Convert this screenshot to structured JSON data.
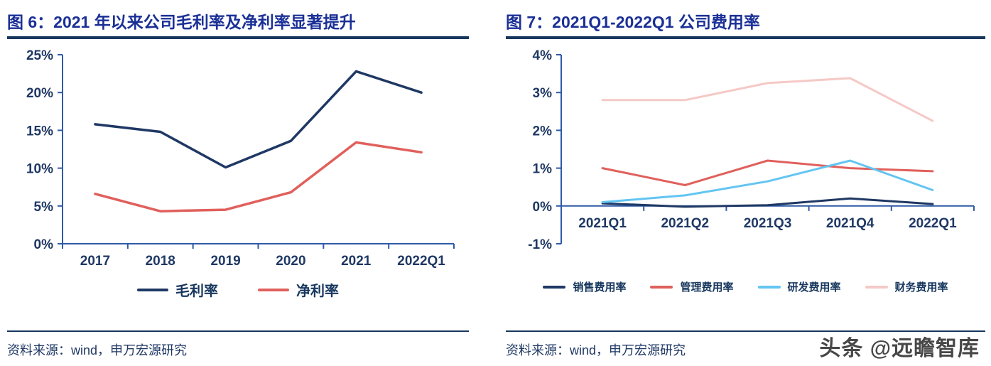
{
  "figure6": {
    "title": "图 6：2021 年以来公司毛利率及净利率显著提升",
    "source": "资料来源：wind，申万宏源研究"
  },
  "figure7": {
    "title": "图 7：2021Q1-2022Q1 公司费用率",
    "source": "资料来源：wind，申万宏源研究"
  },
  "watermark": "头条 @远瞻智库",
  "colors": {
    "title_blue": "#1b3096",
    "rule_navy": "#17375E",
    "axis_blue": "#2E5AA8",
    "label_navy": "#1F3864"
  },
  "chart_data": [
    {
      "type": "line",
      "title": "图 6：2021 年以来公司毛利率及净利率显著提升",
      "categories": [
        "2017",
        "2018",
        "2019",
        "2020",
        "2021",
        "2022Q1"
      ],
      "series": [
        {
          "name": "毛利率",
          "color": "#1F3864",
          "values": [
            15.8,
            14.8,
            10.1,
            13.6,
            22.8,
            20.0
          ]
        },
        {
          "name": "净利率",
          "color": "#E0605C",
          "values": [
            6.6,
            4.3,
            4.5,
            6.8,
            13.4,
            12.1
          ]
        }
      ],
      "ylim": [
        0,
        25
      ],
      "yticks": [
        0,
        5,
        10,
        15,
        20,
        25
      ],
      "ytick_suffix": "%",
      "axis_color": "#2E5AA8",
      "stroke_width": 3.5,
      "grid": false,
      "legend_position": "bottom"
    },
    {
      "type": "line",
      "title": "图 7：2021Q1-2022Q1 公司费用率",
      "categories": [
        "2021Q1",
        "2021Q2",
        "2021Q3",
        "2021Q4",
        "2022Q1"
      ],
      "series": [
        {
          "name": "销售费用率",
          "color": "#1F3864",
          "values": [
            0.07,
            -0.02,
            0.02,
            0.2,
            0.05
          ]
        },
        {
          "name": "管理费用率",
          "color": "#E0605C",
          "values": [
            1.0,
            0.55,
            1.2,
            1.0,
            0.92
          ]
        },
        {
          "name": "研发费用率",
          "color": "#63C5F2",
          "values": [
            0.1,
            0.28,
            0.65,
            1.2,
            0.42
          ]
        },
        {
          "name": "财务费用率",
          "color": "#F5C9C6",
          "values": [
            2.8,
            2.8,
            3.25,
            3.38,
            2.25
          ]
        }
      ],
      "ylim": [
        -1,
        4
      ],
      "yticks": [
        -1,
        0,
        1,
        2,
        3,
        4
      ],
      "ytick_suffix": "%",
      "axis_color": "#2E5AA8",
      "stroke_width": 3,
      "grid": false,
      "legend_position": "bottom"
    }
  ]
}
